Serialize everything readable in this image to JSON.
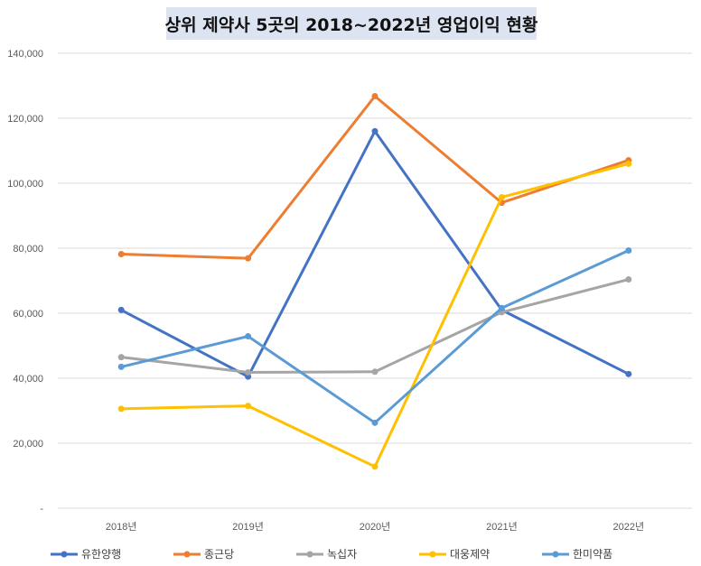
{
  "chart_data": {
    "type": "line",
    "title": "상위 제약사 5곳의 2018~2022년 영업이익 현황",
    "categories": [
      "2018년",
      "2019년",
      "2020년",
      "2021년",
      "2022년"
    ],
    "y_ticks": [
      "-",
      "20,000",
      "40,000",
      "60,000",
      "80,000",
      "100,000",
      "120,000",
      "140,000"
    ],
    "ylim": [
      0,
      140000
    ],
    "grid": true,
    "legend_position": "bottom",
    "series": [
      {
        "name": "유한양행",
        "color": "#4472c4",
        "values": [
          61000,
          40500,
          116000,
          61000,
          41300
        ]
      },
      {
        "name": "종근당",
        "color": "#ed7d31",
        "values": [
          78200,
          76900,
          126800,
          94000,
          107100
        ]
      },
      {
        "name": "녹십자",
        "color": "#a5a5a5",
        "values": [
          46500,
          41800,
          42000,
          60300,
          70400
        ]
      },
      {
        "name": "대웅제약",
        "color": "#ffc000",
        "values": [
          30600,
          31500,
          12800,
          95700,
          106000
        ]
      },
      {
        "name": "한미약품",
        "color": "#5b9bd5",
        "values": [
          43500,
          52900,
          26300,
          61600,
          79300
        ]
      }
    ]
  }
}
